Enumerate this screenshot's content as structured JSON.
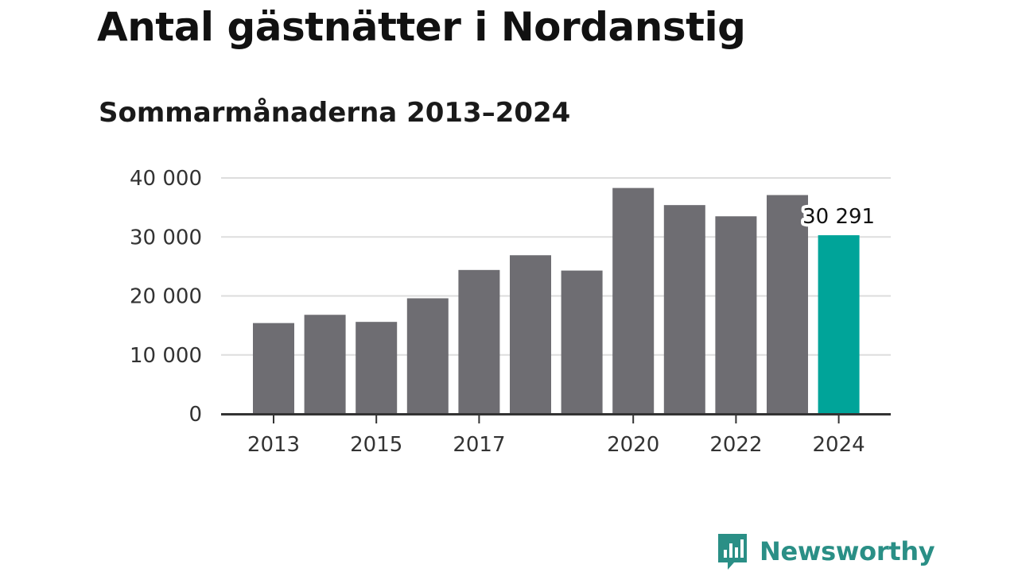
{
  "chart_data": {
    "type": "bar",
    "title": "Antal gästnätter i Nordanstig",
    "subtitle": "Sommarmånaderna 2013–2024",
    "categories": [
      "2013",
      "2014",
      "2015",
      "2016",
      "2017",
      "2018",
      "2019",
      "2020",
      "2021",
      "2022",
      "2023",
      "2024"
    ],
    "values": [
      15400,
      16800,
      15600,
      19600,
      24400,
      26900,
      24300,
      38300,
      35400,
      33500,
      37100,
      30291
    ],
    "ylim": [
      0,
      40000
    ],
    "yticks": [
      0,
      10000,
      20000,
      30000,
      40000
    ],
    "ytick_labels": [
      "0",
      "10 000",
      "20 000",
      "30 000",
      "40 000"
    ],
    "xtick_labels": [
      {
        "category": "2013",
        "label": "2013"
      },
      {
        "category": "2015",
        "label": "2015"
      },
      {
        "category": "2017",
        "label": "2017"
      },
      {
        "category": "2020",
        "label": "2020"
      },
      {
        "category": "2022",
        "label": "2022"
      },
      {
        "category": "2024",
        "label": "2024"
      }
    ],
    "grid": true,
    "bar_color": "#6e6d72",
    "highlight": {
      "category": "2024",
      "color": "#00a499",
      "label": "30 291"
    }
  },
  "brand": {
    "name": "Newsworthy",
    "color": "#2a8f86",
    "icon": "chart-bubble-icon"
  }
}
